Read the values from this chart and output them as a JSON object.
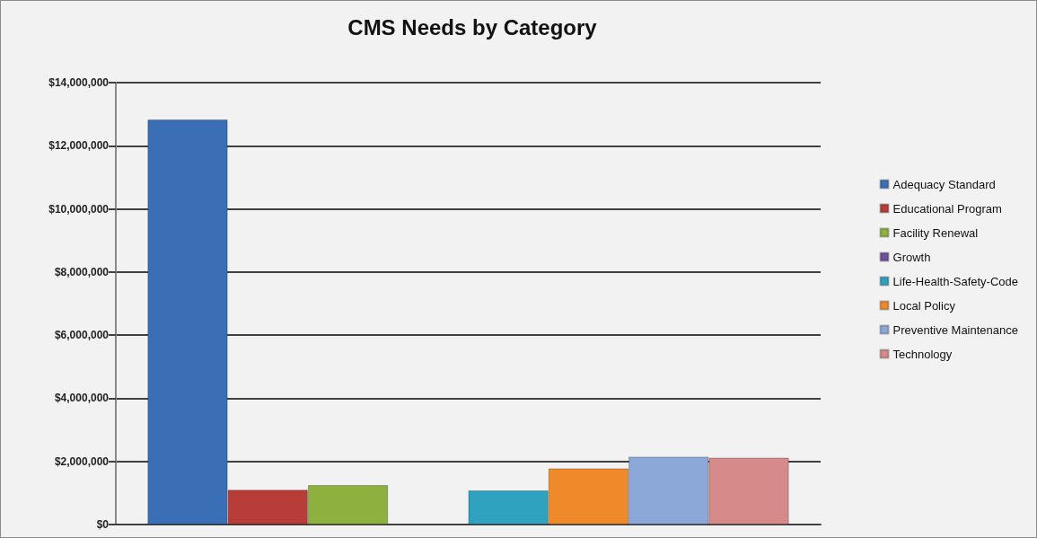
{
  "chart_data": {
    "type": "bar",
    "title": "CMS Needs by Category",
    "categories": [
      null
    ],
    "series": [
      {
        "name": "Adequacy Standard",
        "color": "#3a6fb5",
        "values": [
          12830000
        ]
      },
      {
        "name": "Educational Program",
        "color": "#b83c38",
        "values": [
          1100000
        ]
      },
      {
        "name": "Facility Renewal",
        "color": "#8db03e",
        "values": [
          1250000
        ]
      },
      {
        "name": "Growth",
        "color": "#6f4f9e",
        "values": [
          null
        ]
      },
      {
        "name": "Life-Health-Safety-Code",
        "color": "#2ea2bf",
        "values": [
          1080000
        ]
      },
      {
        "name": "Local Policy",
        "color": "#ef8a2a",
        "values": [
          1780000
        ]
      },
      {
        "name": "Preventive Maintenance",
        "color": "#8ca8d8",
        "values": [
          2150000
        ]
      },
      {
        "name": "Technology",
        "color": "#d68a8a",
        "values": [
          2120000
        ]
      }
    ],
    "ylim": [
      0,
      14000000
    ],
    "yticks": [
      {
        "value": 0,
        "label": "$0"
      },
      {
        "value": 2000000,
        "label": "$2,000,000"
      },
      {
        "value": 4000000,
        "label": "$4,000,000"
      },
      {
        "value": 6000000,
        "label": "$6,000,000"
      },
      {
        "value": 8000000,
        "label": "$8,000,000"
      },
      {
        "value": 10000000,
        "label": "$10,000,000"
      },
      {
        "value": 12000000,
        "label": "$12,000,000"
      },
      {
        "value": 14000000,
        "label": "$14,000,000"
      }
    ],
    "grid": "y",
    "legend": "right"
  }
}
